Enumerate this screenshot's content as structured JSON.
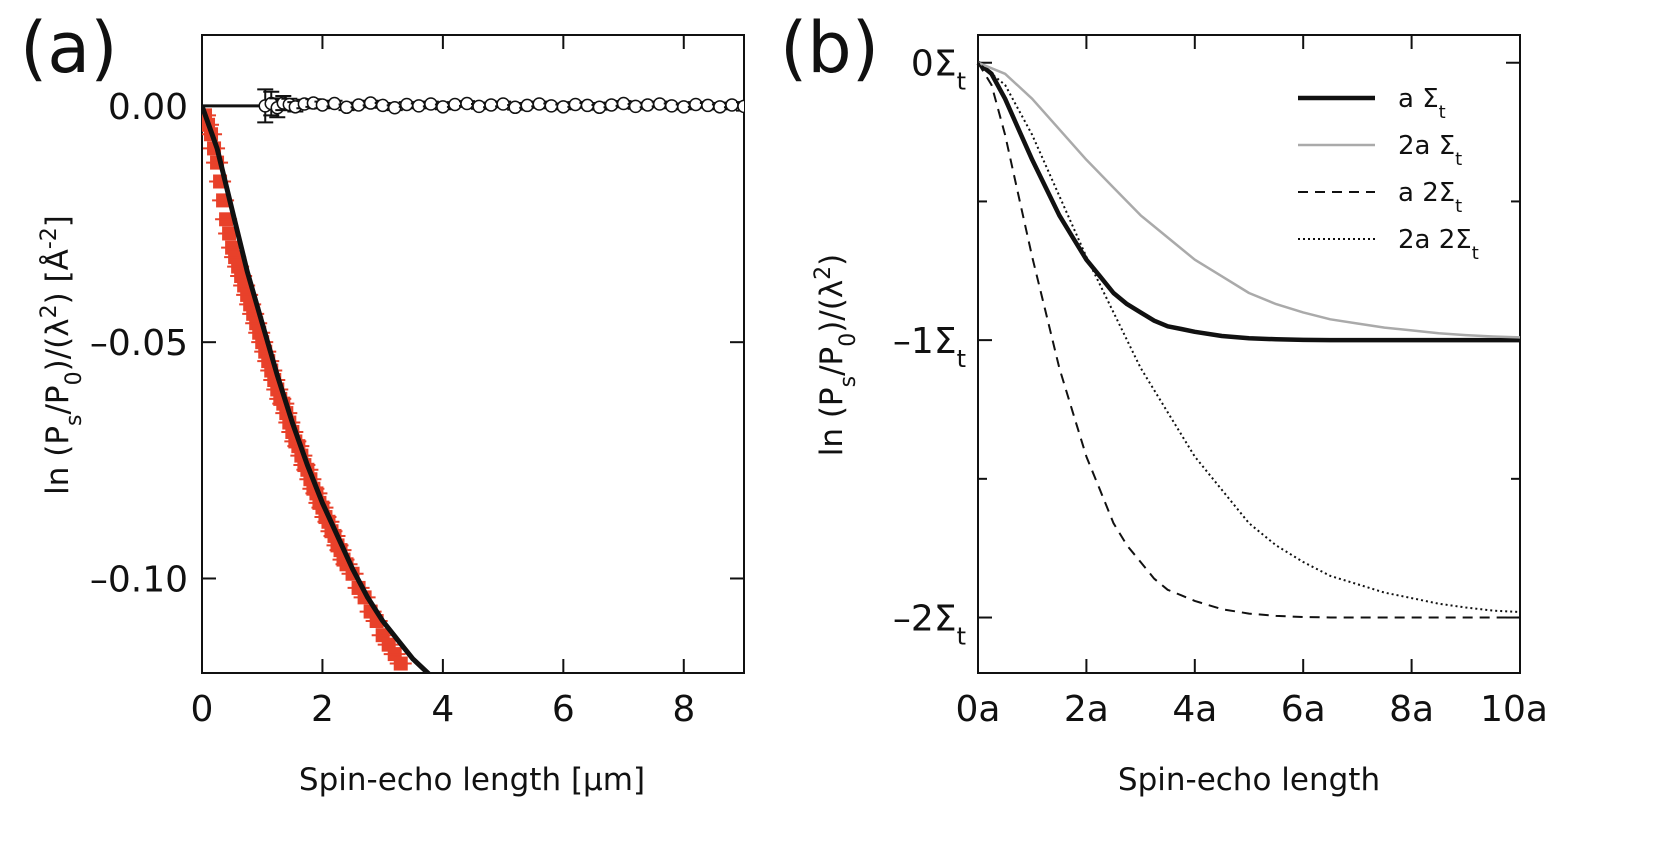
{
  "chart_data": [
    {
      "panel_label": "(a)",
      "type": "scatter",
      "xlabel": "Spin-echo length [µm]",
      "ylabel": "ln (P_s/P_0)/(λ^2) [Å^-2]",
      "xlim": [
        0,
        9
      ],
      "ylim": [
        -0.12,
        0.015
      ],
      "xticks": [
        0,
        2,
        4,
        6,
        8
      ],
      "yticks": [
        0.0,
        -0.05,
        -0.1
      ],
      "ytick_labels": [
        "0.00",
        "–0.05",
        "–0.10"
      ],
      "series": [
        {
          "marker": "red-square",
          "color": "#e8412a",
          "x": [
            0.05,
            0.1,
            0.15,
            0.2,
            0.25,
            0.3,
            0.35,
            0.4,
            0.45,
            0.5,
            0.55,
            0.6,
            0.65,
            0.7,
            0.75,
            0.8,
            0.85,
            0.9,
            0.95,
            1.0,
            1.05,
            1.1,
            1.15,
            1.2,
            1.25,
            1.3,
            1.35,
            1.4,
            1.45,
            1.5,
            1.55,
            1.6,
            1.65,
            1.7,
            1.75,
            1.8,
            1.85,
            1.9,
            1.95,
            2.0,
            2.05,
            2.1,
            2.15,
            2.2,
            2.25,
            2.3,
            2.35,
            2.4,
            2.5,
            2.6,
            2.7,
            2.8,
            2.9,
            3.0,
            3.1,
            3.2,
            3.3
          ],
          "y": [
            -0.002,
            -0.004,
            -0.006,
            -0.009,
            -0.012,
            -0.016,
            -0.02,
            -0.024,
            -0.027,
            -0.03,
            -0.032,
            -0.034,
            -0.036,
            -0.038,
            -0.04,
            -0.042,
            -0.044,
            -0.046,
            -0.048,
            -0.05,
            -0.052,
            -0.054,
            -0.056,
            -0.058,
            -0.06,
            -0.062,
            -0.063,
            -0.065,
            -0.067,
            -0.069,
            -0.071,
            -0.072,
            -0.074,
            -0.076,
            -0.077,
            -0.079,
            -0.081,
            -0.082,
            -0.084,
            -0.085,
            -0.087,
            -0.088,
            -0.09,
            -0.091,
            -0.093,
            -0.094,
            -0.096,
            -0.097,
            -0.099,
            -0.102,
            -0.104,
            -0.107,
            -0.109,
            -0.112,
            -0.114,
            -0.116,
            -0.118
          ]
        },
        {
          "marker": "open-circle",
          "color": "#ffffff",
          "x": [
            1.05,
            1.15,
            1.25,
            1.35,
            1.45,
            1.55,
            1.7,
            1.85,
            2.0,
            2.2,
            2.4,
            2.6,
            2.8,
            3.0,
            3.2,
            3.4,
            3.6,
            3.8,
            4.0,
            4.2,
            4.4,
            4.6,
            4.8,
            5.0,
            5.2,
            5.4,
            5.6,
            5.8,
            6.0,
            6.2,
            6.4,
            6.6,
            6.8,
            7.0,
            7.2,
            7.4,
            7.6,
            7.8,
            8.0,
            8.2,
            8.4,
            8.6,
            8.8,
            9.0
          ],
          "y": [
            0.0,
            0.0005,
            -0.0004,
            0.0006,
            0.0003,
            -0.0002,
            0.0004,
            0.0006,
            0.0002,
            0.0005,
            -0.0003,
            0.0002,
            0.0006,
            0.0001,
            -0.0004,
            0.0003,
            0.0,
            0.0004,
            -0.0002,
            0.0003,
            0.0005,
            -0.0001,
            0.0002,
            0.0004,
            -0.0003,
            0.0001,
            0.0004,
            0.0,
            -0.0002,
            0.0003,
            0.0001,
            -0.0003,
            0.0002,
            0.0005,
            -0.0001,
            0.0002,
            0.0004,
            0.0,
            -0.0002,
            0.0003,
            0.0001,
            -0.0002,
            0.0002,
            -0.0001
          ],
          "err": [
            0.0035,
            0.0025,
            0.002,
            0.0015,
            0.0012,
            0.001,
            0.0009,
            0.0008,
            0.0007,
            0.0006,
            0.0006,
            0.0005,
            0.0005,
            0.0005,
            0.0005,
            0.0005,
            0.0005,
            0.0005,
            0.0005,
            0.0005,
            0.0005,
            0.0005,
            0.0005,
            0.0005,
            0.0005,
            0.0005,
            0.0005,
            0.0005,
            0.0005,
            0.0005,
            0.0005,
            0.0005,
            0.0005,
            0.0005,
            0.0005,
            0.0005,
            0.0005,
            0.0005,
            0.0005,
            0.0005,
            0.0005,
            0.0005,
            0.0005,
            0.0009
          ]
        },
        {
          "marker": "line",
          "color": "#111111",
          "x": [
            0,
            0.25,
            0.5,
            0.75,
            1.0,
            1.25,
            1.5,
            1.75,
            2.0,
            2.25,
            2.5,
            2.75,
            3.0,
            3.25,
            3.5,
            3.75,
            4.0
          ],
          "y": [
            0.0,
            -0.009,
            -0.022,
            -0.035,
            -0.046,
            -0.057,
            -0.067,
            -0.076,
            -0.084,
            -0.091,
            -0.098,
            -0.104,
            -0.109,
            -0.113,
            -0.117,
            -0.12,
            -0.123
          ]
        },
        {
          "marker": "line",
          "color": "#111111",
          "x": [
            0,
            9
          ],
          "y": [
            0,
            0
          ]
        }
      ]
    },
    {
      "panel_label": "(b)",
      "type": "line",
      "xlabel": "Spin-echo length",
      "ylabel": "ln (P_s/P_0)/(λ^2)",
      "xlim": [
        0,
        10
      ],
      "ylim": [
        -2.2,
        0.1
      ],
      "xticks": [
        0,
        2,
        4,
        6,
        8,
        10
      ],
      "xtick_labels": [
        "0a",
        "2a",
        "4a",
        "6a",
        "8a",
        "10a"
      ],
      "yticks": [
        0,
        -1,
        -2
      ],
      "ytick_labels": [
        "0Σt",
        "–1Σt",
        "–2Σt"
      ],
      "legend_position": "top-right",
      "series": [
        {
          "name": "a Σt",
          "style": "thick-solid",
          "color": "#111111",
          "x": [
            0,
            0.25,
            0.5,
            0.75,
            1,
            1.25,
            1.5,
            1.75,
            2,
            2.25,
            2.5,
            2.75,
            3,
            3.25,
            3.5,
            3.75,
            4,
            4.5,
            5,
            5.5,
            6,
            6.5,
            7,
            8,
            9,
            10
          ],
          "y": [
            0,
            -0.04,
            -0.13,
            -0.24,
            -0.35,
            -0.45,
            -0.55,
            -0.63,
            -0.71,
            -0.77,
            -0.83,
            -0.87,
            -0.9,
            -0.93,
            -0.95,
            -0.96,
            -0.97,
            -0.985,
            -0.993,
            -0.997,
            -0.999,
            -1,
            -1,
            -1,
            -1,
            -1
          ]
        },
        {
          "name": "2a Σt",
          "style": "thin-gray",
          "color": "#aaaaaa",
          "x": [
            0,
            0.5,
            1,
            1.5,
            2,
            2.5,
            3,
            3.5,
            4,
            4.5,
            5,
            5.5,
            6,
            6.5,
            7,
            7.5,
            8,
            8.5,
            9,
            9.5,
            10
          ],
          "y": [
            0,
            -0.04,
            -0.13,
            -0.24,
            -0.35,
            -0.45,
            -0.55,
            -0.63,
            -0.71,
            -0.77,
            -0.83,
            -0.87,
            -0.9,
            -0.925,
            -0.94,
            -0.955,
            -0.965,
            -0.975,
            -0.982,
            -0.987,
            -0.99
          ]
        },
        {
          "name": "a 2Σt",
          "style": "dashed",
          "color": "#111111",
          "x": [
            0,
            0.25,
            0.5,
            0.75,
            1,
            1.25,
            1.5,
            1.75,
            2,
            2.25,
            2.5,
            2.75,
            3,
            3.25,
            3.5,
            3.75,
            4,
            4.5,
            5,
            5.5,
            6,
            6.5,
            7,
            8,
            9,
            10
          ],
          "y": [
            0,
            -0.08,
            -0.26,
            -0.48,
            -0.7,
            -0.9,
            -1.1,
            -1.26,
            -1.42,
            -1.54,
            -1.66,
            -1.74,
            -1.8,
            -1.86,
            -1.9,
            -1.92,
            -1.94,
            -1.97,
            -1.986,
            -1.994,
            -1.998,
            -2,
            -2,
            -2,
            -2,
            -2
          ]
        },
        {
          "name": "2a 2Σt",
          "style": "dotted",
          "color": "#111111",
          "x": [
            0,
            0.5,
            1,
            1.5,
            2,
            2.5,
            3,
            3.5,
            4,
            4.5,
            5,
            5.5,
            6,
            6.5,
            7,
            7.5,
            8,
            8.5,
            9,
            9.5,
            10
          ],
          "y": [
            0,
            -0.08,
            -0.26,
            -0.48,
            -0.7,
            -0.9,
            -1.1,
            -1.26,
            -1.42,
            -1.54,
            -1.66,
            -1.74,
            -1.8,
            -1.85,
            -1.88,
            -1.91,
            -1.93,
            -1.95,
            -1.964,
            -1.975,
            -1.98
          ]
        }
      ]
    }
  ]
}
